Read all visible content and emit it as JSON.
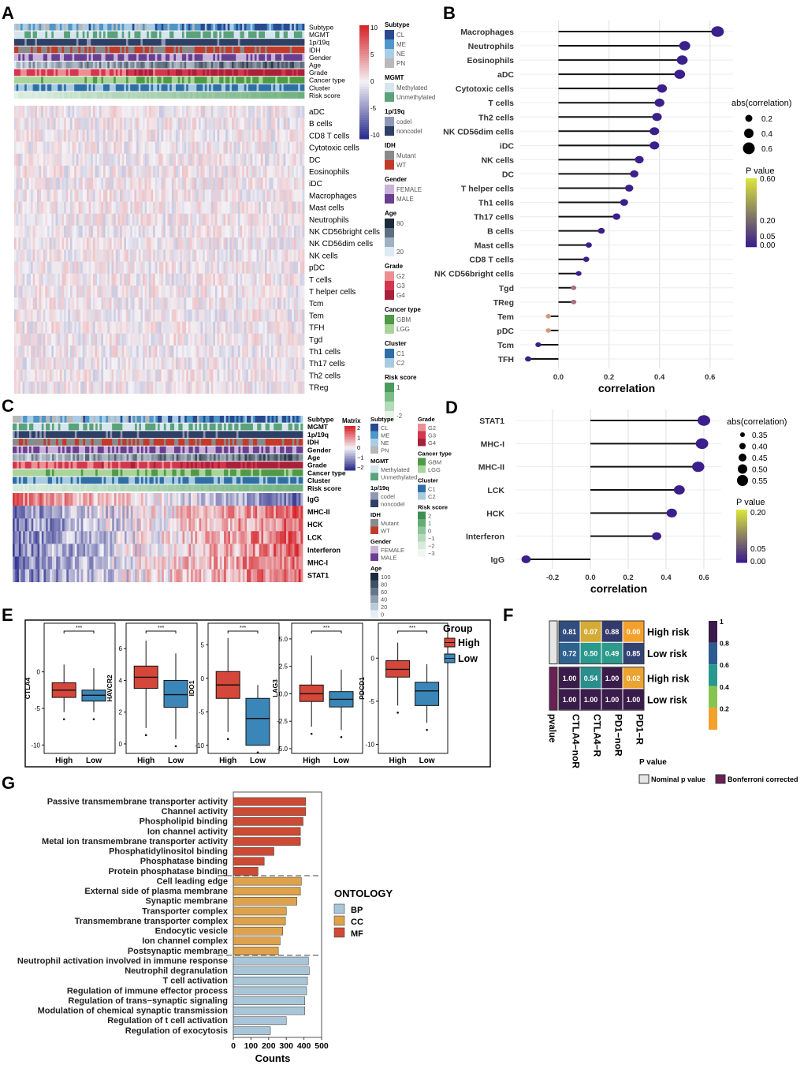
{
  "panel_labels": [
    "A",
    "B",
    "C",
    "D",
    "E",
    "F",
    "G"
  ],
  "colors": {
    "heat_low": "#2c2f8c",
    "heat_mid": "#f4f2f6",
    "heat_high": "#d6252b",
    "lollipop_low": "#3b1f8a",
    "lollipop_high": "#d9e23c",
    "high_group": "#d4473a",
    "low_group": "#3b86b8",
    "bp": "#a9c6d8",
    "cc": "#dda24b",
    "mf": "#cd4a34",
    "subtype_CL": "#2a4a8f",
    "subtype_ME": "#4f96c9",
    "subtype_NE": "#a9cde6",
    "subtype_PN": "#b8b8b8",
    "methylated": "#d6e6ee",
    "unmethylated": "#5aa27a",
    "codel": "#8f98b5",
    "noncodel": "#2d4066",
    "mutant": "#8a8a8a",
    "wt": "#c23b2a",
    "female": "#c9b3d8",
    "male": "#6a3f8f",
    "g2": "#eb8f93",
    "g3": "#d4364f",
    "g4": "#a8203a",
    "gbm": "#4f9a47",
    "lgg": "#a9d49a",
    "c1": "#2f6fa6",
    "c2": "#a9cbe0"
  },
  "panelA": {
    "track_labels": [
      "Subtype",
      "MGMT",
      "1p/19q",
      "IDH",
      "Gender",
      "Age",
      "Grade",
      "Cancer type",
      "Cluster",
      "Risk score"
    ],
    "row_labels": [
      "aDC",
      "B cells",
      "CD8 T cells",
      "Cytotoxic cells",
      "DC",
      "Eosinophils",
      "iDC",
      "Macrophages",
      "Mast cells",
      "Neutrophils",
      "NK CD56bright cells",
      "NK CD56dim cells",
      "NK cells",
      "pDC",
      "T cells",
      "T helper cells",
      "Tcm",
      "Tem",
      "TFH",
      "Tgd",
      "Th1 cells",
      "Th17 cells",
      "Th2 cells",
      "TReg"
    ],
    "scale_ticks": [
      "10",
      "5",
      "0",
      "-5",
      "-10"
    ],
    "legend": [
      {
        "title": "Subtype",
        "items": [
          "CL",
          "ME",
          "NE",
          "PN"
        ],
        "colors": [
          "#2a4a8f",
          "#4f96c9",
          "#a9cde6",
          "#b8b8b8"
        ]
      },
      {
        "title": "MGMT",
        "items": [
          "Methylated",
          "Unmethylated"
        ],
        "colors": [
          "#d6e6ee",
          "#5aa27a"
        ]
      },
      {
        "title": "1p/19q",
        "items": [
          "codel",
          "noncodel"
        ],
        "colors": [
          "#8f98b5",
          "#2d4066"
        ]
      },
      {
        "title": "IDH",
        "items": [
          "Mutant",
          "WT"
        ],
        "colors": [
          "#8a8a8a",
          "#c23b2a"
        ]
      },
      {
        "title": "Gender",
        "items": [
          "FEMALE",
          "MALE"
        ],
        "colors": [
          "#c9b3d8",
          "#6a3f8f"
        ]
      },
      {
        "title": "Age",
        "items": [
          "80",
          "",
          "",
          "20"
        ],
        "colors": [
          "#1c2b3c",
          "#5d6f82",
          "#9fb0c0",
          "#dde9f3"
        ]
      },
      {
        "title": "Grade",
        "items": [
          "G2",
          "G3",
          "G4"
        ],
        "colors": [
          "#eb8f93",
          "#d4364f",
          "#a8203a"
        ]
      },
      {
        "title": "Cancer type",
        "items": [
          "GBM",
          "LGG"
        ],
        "colors": [
          "#4f9a47",
          "#a9d49a"
        ]
      },
      {
        "title": "Cluster",
        "items": [
          "C1",
          "C2"
        ],
        "colors": [
          "#2f6fa6",
          "#a9cbe0"
        ]
      },
      {
        "title": "Risk score",
        "items": [
          "1",
          "",
          "",
          "-2"
        ],
        "colors": [
          "#4a9a5b",
          "#7bbd87",
          "#b3dbb7",
          "#e6f4e8"
        ]
      }
    ]
  },
  "panelC": {
    "track_labels": [
      "Subtype",
      "MGMT",
      "1p/19q",
      "IDH",
      "Gender",
      "Age",
      "Grade",
      "Cancer type",
      "Cluster",
      "Risk score"
    ],
    "row_labels": [
      "IgG",
      "MHC-II",
      "HCK",
      "LCK",
      "Interferon",
      "MHC-I",
      "STAT1"
    ],
    "matrix_title": "Matrix",
    "scale_ticks": [
      "2",
      "1",
      "0",
      "−1",
      "−2"
    ],
    "legend_col1": [
      {
        "title": "Subtype",
        "items": [
          "CL",
          "ME",
          "NE",
          "PN"
        ],
        "colors": [
          "#2a4a8f",
          "#4f96c9",
          "#a9cde6",
          "#b8b8b8"
        ]
      },
      {
        "title": "MGMT",
        "items": [
          "Methylated",
          "Unmethylated"
        ],
        "colors": [
          "#d6e6ee",
          "#5aa27a"
        ]
      },
      {
        "title": "1p/19q",
        "items": [
          "codel",
          "noncodel"
        ],
        "colors": [
          "#8f98b5",
          "#2d4066"
        ]
      },
      {
        "title": "IDH",
        "items": [
          "Mutant",
          "WT"
        ],
        "colors": [
          "#8a8a8a",
          "#c23b2a"
        ]
      },
      {
        "title": "Gender",
        "items": [
          "FEMALE",
          "MALE"
        ],
        "colors": [
          "#c9b3d8",
          "#6a3f8f"
        ]
      },
      {
        "title": "Age",
        "items": [
          "100",
          "80",
          "60",
          "40",
          "20",
          "0"
        ],
        "colors": [
          "#1c2b3c",
          "#3e5064",
          "#63768a",
          "#8fa0b2",
          "#bccad7",
          "#e4eef6"
        ]
      }
    ],
    "legend_col2": [
      {
        "title": "Grade",
        "items": [
          "G2",
          "G3",
          "G4"
        ],
        "colors": [
          "#eb8f93",
          "#d4364f",
          "#a8203a"
        ]
      },
      {
        "title": "Cancer type",
        "items": [
          "GBM",
          "LGG"
        ],
        "colors": [
          "#4f9a47",
          "#a9d49a"
        ]
      },
      {
        "title": "Cluster",
        "items": [
          "C1",
          "C2"
        ],
        "colors": [
          "#2f6fa6",
          "#a9cbe0"
        ]
      },
      {
        "title": "Risk score",
        "items": [
          "2",
          "1",
          "0",
          "−1",
          "−2",
          "−3"
        ],
        "colors": [
          "#3e8f52",
          "#66ad75",
          "#8fc59a",
          "#b6d9bc",
          "#d8ebdb",
          "#f0f7f1"
        ]
      }
    ]
  },
  "chart_data": [
    {
      "id": "B",
      "type": "scatter",
      "subtype": "lollipop",
      "xlabel": "correlation",
      "xlim": [
        -0.12,
        0.66
      ],
      "xticks": [
        0.0,
        0.2,
        0.4,
        0.6
      ],
      "categories": [
        "Macrophages",
        "Neutrophils",
        "Eosinophils",
        "aDC",
        "Cytotoxic cells",
        "T cells",
        "Th2 cells",
        "NK CD56dim cells",
        "iDC",
        "NK cells",
        "DC",
        "T helper cells",
        "Th1 cells",
        "Th17 cells",
        "B cells",
        "Mast cells",
        "CD8 T cells",
        "NK CD56bright cells",
        "Tgd",
        "TReg",
        "Tem",
        "pDC",
        "Tcm",
        "TFH"
      ],
      "values": [
        0.63,
        0.5,
        0.49,
        0.48,
        0.41,
        0.4,
        0.39,
        0.38,
        0.38,
        0.32,
        0.3,
        0.28,
        0.26,
        0.23,
        0.17,
        0.12,
        0.11,
        0.08,
        0.06,
        0.06,
        -0.04,
        -0.04,
        -0.08,
        -0.12
      ],
      "p_values": [
        0,
        0,
        0,
        0,
        0,
        0,
        0,
        0,
        0,
        0,
        0,
        0,
        0,
        0,
        0,
        0,
        0,
        0.02,
        0.15,
        0.15,
        0.28,
        0.28,
        0.03,
        0.01
      ],
      "size_legend_title": "abs(correlation)",
      "size_legend": [
        "0.2",
        "0.4",
        "0.6"
      ],
      "color_legend_title": "P value",
      "color_legend": [
        "0.60",
        "0.20",
        "0.05",
        "0.00"
      ]
    },
    {
      "id": "D",
      "type": "scatter",
      "subtype": "lollipop",
      "xlabel": "correlation",
      "xlim": [
        -0.35,
        0.65
      ],
      "xticks": [
        -0.2,
        0.0,
        0.2,
        0.4,
        0.6
      ],
      "xtick_labels": [
        "-0.2",
        "0.0",
        "0.2",
        "0.4",
        "0.6"
      ],
      "categories": [
        "STAT1",
        "MHC-I",
        "MHC-II",
        "LCK",
        "HCK",
        "Interferon",
        "IgG"
      ],
      "values": [
        0.6,
        0.59,
        0.57,
        0.47,
        0.43,
        0.35,
        -0.34
      ],
      "p_values": [
        0,
        0,
        0,
        0,
        0,
        0,
        0
      ],
      "size_legend_title": "abs(correlation)",
      "size_legend": [
        "0.35",
        "0.40",
        "0.45",
        "0.50",
        "0.55"
      ],
      "color_legend_title": "P value",
      "color_legend": [
        "0.20",
        "0.05",
        "0.00"
      ]
    },
    {
      "id": "E",
      "type": "boxplot",
      "legend_title": "Group",
      "groups": [
        "High",
        "Low"
      ],
      "significance": "***",
      "genes": [
        {
          "gene": "CTLA4",
          "ylim": [
            -10.5,
            6
          ],
          "yticks": [
            "0",
            "-5",
            "-10"
          ],
          "ytick_values": [
            0,
            -5,
            -10
          ],
          "high": {
            "q1": -3.5,
            "median": -2.5,
            "q3": -1.5,
            "lo": -5.5,
            "hi": 1
          },
          "low": {
            "q1": -4,
            "median": -3.2,
            "q3": -2.5,
            "lo": -5.5,
            "hi": 0.5
          }
        },
        {
          "gene": "HAVCR2",
          "ylim": [
            -0.3,
            7.3
          ],
          "yticks": [
            "6",
            "4",
            "2",
            "0"
          ],
          "ytick_values": [
            6,
            4,
            2,
            0
          ],
          "high": {
            "q1": 3.5,
            "median": 4.2,
            "q3": 4.9,
            "lo": 1,
            "hi": 6.5
          },
          "low": {
            "q1": 2.3,
            "median": 3.1,
            "q3": 4.0,
            "lo": 0.3,
            "hi": 5.7
          }
        },
        {
          "gene": "IDO1",
          "ylim": [
            -10.5,
            7.5
          ],
          "yticks": [
            "5",
            "0",
            "-5",
            "-10"
          ],
          "ytick_values": [
            5,
            0,
            -5,
            -10
          ],
          "high": {
            "q1": -3,
            "median": -1,
            "q3": 1,
            "lo": -8,
            "hi": 6
          },
          "low": {
            "q1": -10,
            "median": -6,
            "q3": -3,
            "lo": -10,
            "hi": -1
          }
        },
        {
          "gene": "LAG3",
          "ylim": [
            -5,
            6
          ],
          "yticks": [
            "5.0",
            "2.5",
            "0.0",
            "-2.5",
            "-5.0"
          ],
          "ytick_values": [
            5,
            2.5,
            0,
            -2.5,
            -5
          ],
          "high": {
            "q1": -0.7,
            "median": 0,
            "q3": 0.8,
            "lo": -3.0,
            "hi": 3.5
          },
          "low": {
            "q1": -1.2,
            "median": -0.5,
            "q3": 0.2,
            "lo": -3.3,
            "hi": 2.2
          }
        },
        {
          "gene": "PDCD1",
          "ylim": [
            -10.5,
            3.5
          ],
          "yticks": [
            "0",
            "-5",
            "-10"
          ],
          "ytick_values": [
            0,
            -5,
            -10
          ],
          "high": {
            "q1": -2.2,
            "median": -1.3,
            "q3": -0.3,
            "lo": -5.5,
            "hi": 1.8
          },
          "low": {
            "q1": -5.5,
            "median": -3.8,
            "q3": -2.8,
            "lo": -7.5,
            "hi": -0.7
          }
        }
      ]
    },
    {
      "id": "F",
      "type": "heatmap",
      "columns": [
        "CTLA4−noR",
        "CTLA4−R",
        "PD1−noR",
        "PD1−R"
      ],
      "row_labels": [
        "High risk",
        "Low risk",
        "High risk",
        "Low risk"
      ],
      "values": [
        [
          0.81,
          0.07,
          0.88,
          0.0
        ],
        [
          0.72,
          0.5,
          0.49,
          0.85
        ],
        [
          1.0,
          0.54,
          1.0,
          0.02
        ],
        [
          1.0,
          1.0,
          1.0,
          1.0
        ]
      ],
      "value_labels": [
        [
          "0.81",
          "0.07",
          "0.88",
          "0.00"
        ],
        [
          "0.72",
          "0.50",
          "0.49",
          "0.85"
        ],
        [
          "1.00",
          "0.54",
          "1.00",
          "0.02"
        ],
        [
          "1.00",
          "1.00",
          "1.00",
          "1.00"
        ]
      ],
      "side_label": "pvalue",
      "scale_ticks": [
        "1",
        "0.8",
        "0.6",
        "0.4",
        "0.2"
      ],
      "legend_title": "P value",
      "legend_items": [
        "Nominal p value",
        "Bonferroni corrected"
      ]
    },
    {
      "id": "G",
      "type": "bar",
      "orientation": "horizontal",
      "xlabel": "Counts",
      "xlim": [
        0,
        500
      ],
      "xticks": [
        "0",
        "100",
        "200",
        "300",
        "400",
        "500"
      ],
      "legend_title": "ONTOLOGY",
      "legend_items": [
        "BP",
        "CC",
        "MF"
      ],
      "categories": [
        "Passive transmembrane transporter activity",
        "Channel activity",
        "Phospholipid binding",
        "Ion channel activity",
        "Metal ion transmembrane transporter activity",
        "Phosphatidylinositol binding",
        "Phosphatase binding",
        "Protein phosphatase binding",
        "Cell leading edge",
        "External side of plasma membrane",
        "Synaptic membrane",
        "Transporter complex",
        "Transmembrane transporter complex",
        "Endocytic vesicle",
        "Ion channel complex",
        "Postsynaptic membrane",
        "Neutrophil activation involved in immune response",
        "Neutrophil degranulation",
        "T cell activation",
        "Regulation of immune effector process",
        "Regulation of trans−synaptic signaling",
        "Modulation of chemical synaptic transmission",
        "Regulation of t cell activation",
        "Regulation of exocytosis"
      ],
      "values": [
        410,
        410,
        395,
        380,
        380,
        230,
        175,
        140,
        385,
        380,
        360,
        300,
        295,
        280,
        265,
        255,
        425,
        430,
        420,
        415,
        405,
        405,
        300,
        210
      ],
      "ontology": [
        "MF",
        "MF",
        "MF",
        "MF",
        "MF",
        "MF",
        "MF",
        "MF",
        "CC",
        "CC",
        "CC",
        "CC",
        "CC",
        "CC",
        "CC",
        "CC",
        "BP",
        "BP",
        "BP",
        "BP",
        "BP",
        "BP",
        "BP",
        "BP"
      ]
    }
  ]
}
